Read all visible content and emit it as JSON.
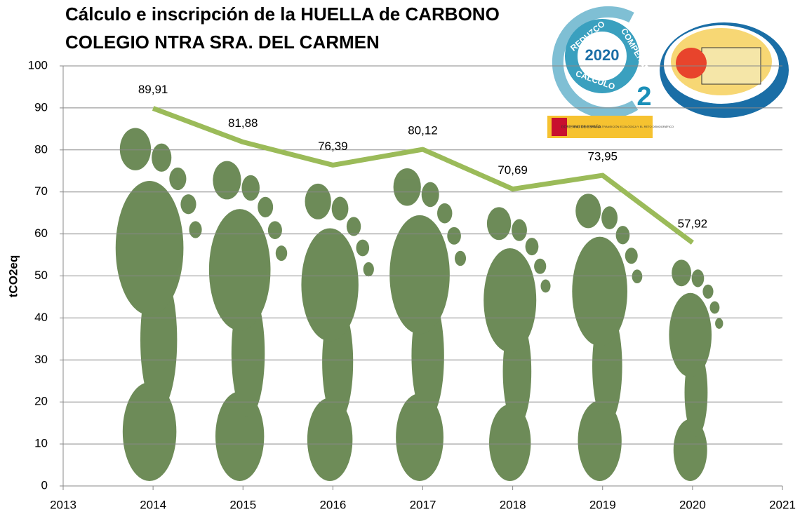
{
  "chart_data": {
    "type": "line",
    "title": [
      "Cálculo e inscripción de la HUELLA de CARBONO",
      "COLEGIO NTRA SRA. DEL CARMEN"
    ],
    "y_label": "tCO2eq",
    "x": [
      2014,
      2015,
      2016,
      2017,
      2018,
      2019,
      2020
    ],
    "series": [
      {
        "name": "tCO2eq",
        "color": "#9bbb59",
        "values": [
          89.91,
          81.88,
          76.39,
          80.12,
          70.69,
          73.95,
          57.92
        ],
        "value_labels": [
          "89,91",
          "81,88",
          "76,39",
          "80,12",
          "70,69",
          "73,95",
          "57,92"
        ]
      }
    ],
    "xlim": [
      2013,
      2021
    ],
    "xticks": [
      2013,
      2014,
      2015,
      2016,
      2017,
      2018,
      2019,
      2020,
      2021
    ],
    "ylim": [
      0,
      100
    ],
    "yticks": [
      0,
      10,
      20,
      30,
      40,
      50,
      60,
      70,
      80,
      90,
      100
    ],
    "grid": true,
    "annotations": [
      "REDUZCO",
      "COMPENSO",
      "CALCULO",
      "2020",
      "2",
      "GOBIERNO DE ESPAÑA",
      "MINISTERIO PARA LA TRANSICIÓN ECOLÓGICA Y EL RETO DEMOGRÁFICO"
    ]
  }
}
